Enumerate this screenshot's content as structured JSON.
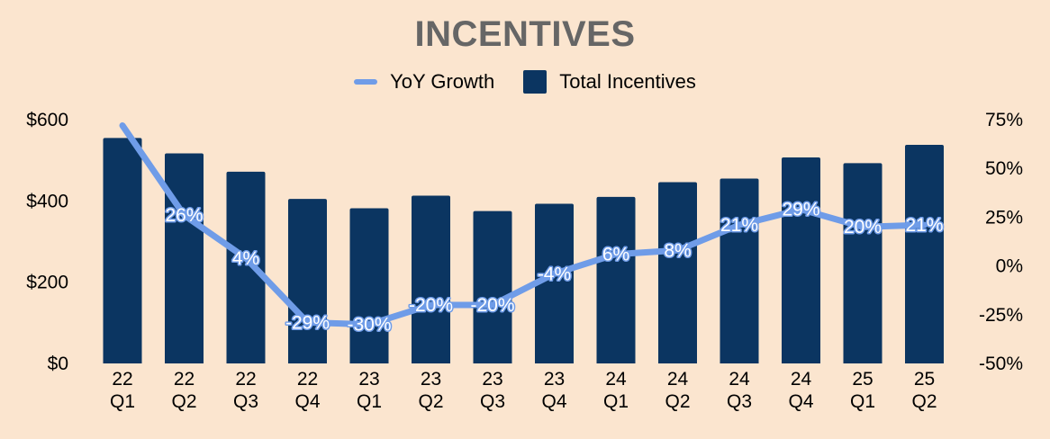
{
  "chart_data": {
    "type": "bar",
    "title": "INCENTIVES",
    "categories": [
      [
        "22",
        "Q1"
      ],
      [
        "22",
        "Q2"
      ],
      [
        "22",
        "Q3"
      ],
      [
        "22",
        "Q4"
      ],
      [
        "23",
        "Q1"
      ],
      [
        "23",
        "Q2"
      ],
      [
        "23",
        "Q3"
      ],
      [
        "23",
        "Q4"
      ],
      [
        "24",
        "Q1"
      ],
      [
        "24",
        "Q2"
      ],
      [
        "24",
        "Q3"
      ],
      [
        "24",
        "Q4"
      ],
      [
        "25",
        "Q1"
      ],
      [
        "25",
        "Q2"
      ]
    ],
    "series": [
      {
        "name": "Total Incentives",
        "type": "bar",
        "axis": "left",
        "color": "#0b3561",
        "values": [
          555,
          517,
          472,
          405,
          382,
          413,
          375,
          393,
          410,
          446,
          455,
          507,
          493,
          538
        ]
      },
      {
        "name": "YoY Growth",
        "type": "line",
        "axis": "right",
        "color": "#6f9ce8",
        "values": [
          72,
          26,
          4,
          -29,
          -30,
          -20,
          -20,
          -4,
          6,
          8,
          21,
          29,
          20,
          21
        ],
        "labels": [
          null,
          "26%",
          "4%",
          "-29%",
          "-30%",
          "-20%",
          "-20%",
          "-4%",
          "6%",
          "8%",
          "21%",
          "29%",
          "20%",
          "21%"
        ]
      }
    ],
    "y_left": {
      "min": 0,
      "max": 600,
      "ticks": [
        0,
        200,
        400,
        600
      ],
      "tick_labels": [
        "$0",
        "$200",
        "$400",
        "$600"
      ]
    },
    "y_right": {
      "min": -50,
      "max": 75,
      "ticks": [
        -50,
        -25,
        0,
        25,
        50,
        75
      ],
      "tick_labels": [
        "-50%",
        "-25%",
        "0%",
        "25%",
        "50%",
        "75%"
      ]
    },
    "legend": {
      "position": "top-center",
      "entries": [
        "YoY Growth",
        "Total Incentives"
      ]
    },
    "grid": false
  },
  "colors": {
    "background": "#fbe5cf",
    "bar": "#0b3561",
    "line": "#6f9ce8",
    "title": "#666666"
  }
}
